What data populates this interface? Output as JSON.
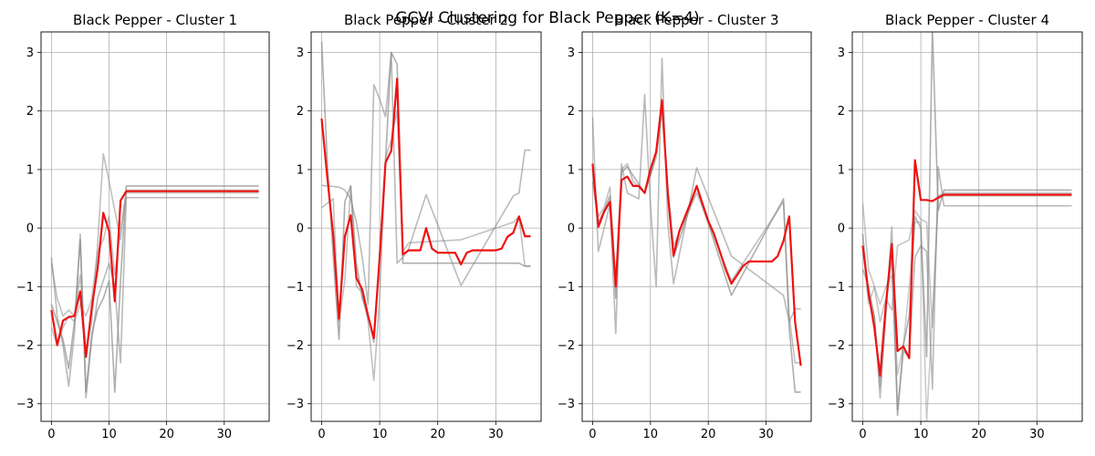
{
  "figure": {
    "suptitle": "GCVI Clustering for Black Pepper (K=4)"
  },
  "chart_data": [
    {
      "type": "line",
      "title": "Black Pepper - Cluster 1",
      "xlim": [
        -1.8,
        37.8
      ],
      "ylim": [
        -3.3,
        3.35
      ],
      "xticks": [
        0,
        10,
        20,
        30
      ],
      "yticks": [
        -3,
        -2,
        -1,
        0,
        1,
        2,
        3
      ],
      "grid": true,
      "series": [
        {
          "role": "member",
          "color": "#8c8c8c",
          "opacity": 0.7,
          "x": [
            0,
            1,
            2,
            3,
            4,
            5,
            6,
            7,
            8,
            9,
            10,
            11,
            12,
            13,
            36
          ],
          "y": [
            -1.3,
            -1.6,
            -1.9,
            -2.4,
            -1.6,
            -0.2,
            -2.8,
            -1.8,
            -1.4,
            -1.2,
            -0.9,
            -2.8,
            -0.9,
            0.72,
            0.72
          ]
        },
        {
          "role": "member",
          "color": "#8c8c8c",
          "opacity": 0.6,
          "x": [
            0,
            1,
            2,
            3,
            4,
            5,
            6,
            7,
            8,
            9,
            10,
            11,
            12,
            13,
            36
          ],
          "y": [
            -0.5,
            -1.5,
            -2.0,
            -2.7,
            -1.8,
            -0.1,
            -2.9,
            -1.9,
            -1.2,
            -0.9,
            -0.6,
            -1.0,
            -2.3,
            0.52,
            0.52
          ]
        },
        {
          "role": "member",
          "color": "#8c8c8c",
          "opacity": 0.55,
          "x": [
            0,
            1,
            2,
            3,
            4,
            5,
            6,
            7,
            8,
            9,
            10,
            11,
            12,
            13,
            36
          ],
          "y": [
            -0.6,
            -1.2,
            -1.5,
            -1.4,
            -1.5,
            -0.8,
            -2.1,
            -1.6,
            -0.3,
            1.27,
            0.8,
            0.3,
            -0.2,
            0.65,
            0.65
          ]
        },
        {
          "role": "member",
          "color": "#8c8c8c",
          "opacity": 0.5,
          "x": [
            0,
            1,
            2,
            3,
            4,
            5,
            6,
            7,
            8,
            9,
            10,
            11,
            12,
            13,
            36
          ],
          "y": [
            -1.7,
            -2.0,
            -1.7,
            -1.5,
            -1.6,
            -1.3,
            -1.5,
            -1.2,
            -0.4,
            -0.2,
            0.2,
            -0.8,
            0.0,
            0.6,
            0.6
          ]
        },
        {
          "role": "centroid",
          "color": "#ee1111",
          "opacity": 1,
          "x": [
            0,
            1,
            2,
            3,
            4,
            5,
            6,
            7,
            8,
            9,
            10,
            11,
            12,
            13,
            36
          ],
          "y": [
            -1.4,
            -2.0,
            -1.58,
            -1.52,
            -1.5,
            -1.08,
            -2.2,
            -1.35,
            -0.7,
            0.26,
            -0.05,
            -1.25,
            0.47,
            0.63,
            0.63
          ]
        }
      ]
    },
    {
      "type": "line",
      "title": "Black Pepper - Cluster 2",
      "xlim": [
        -1.8,
        37.8
      ],
      "ylim": [
        -3.3,
        3.35
      ],
      "xticks": [
        0,
        10,
        20,
        30
      ],
      "yticks": [
        -3,
        -2,
        -1,
        0,
        1,
        2,
        3
      ],
      "grid": true,
      "series": [
        {
          "role": "member",
          "color": "#8c8c8c",
          "opacity": 0.7,
          "x": [
            0,
            1,
            2,
            3,
            4,
            5,
            6,
            7,
            8,
            9,
            10,
            11,
            12,
            13,
            14,
            15,
            18,
            20,
            24,
            30,
            33,
            34,
            35,
            36
          ],
          "y": [
            3.18,
            1.1,
            -0.5,
            -1.9,
            0.45,
            0.72,
            -0.6,
            -1.2,
            -1.5,
            -1.95,
            -0.4,
            1.15,
            3.0,
            2.8,
            -0.6,
            -0.6,
            -0.6,
            -0.6,
            -0.6,
            -0.6,
            -0.6,
            -0.6,
            -0.65,
            -0.65
          ]
        },
        {
          "role": "member",
          "color": "#8c8c8c",
          "opacity": 0.6,
          "x": [
            0,
            1,
            2,
            3,
            4,
            5,
            6,
            7,
            8,
            9,
            10,
            11,
            12,
            13,
            14,
            15,
            18,
            24,
            33,
            34,
            35,
            36
          ],
          "y": [
            0.73,
            0.72,
            0.71,
            0.7,
            0.65,
            0.5,
            0.1,
            -0.5,
            -1.3,
            2.45,
            2.2,
            1.9,
            3.0,
            -0.6,
            -0.5,
            -0.35,
            0.57,
            -0.98,
            0.55,
            0.6,
            1.33,
            1.33
          ]
        },
        {
          "role": "member",
          "color": "#8c8c8c",
          "opacity": 0.55,
          "x": [
            0,
            2,
            3,
            4,
            5,
            6,
            7,
            8,
            9,
            10,
            11,
            12,
            13,
            14,
            15,
            24,
            33,
            34,
            35,
            36
          ],
          "y": [
            0.35,
            0.5,
            -1.6,
            -0.9,
            0.72,
            -1.0,
            -1.1,
            -1.6,
            -2.6,
            -1.2,
            1.2,
            1.5,
            2.0,
            -0.4,
            -0.25,
            -0.2,
            0.1,
            0.2,
            -0.65,
            -0.65
          ]
        },
        {
          "role": "centroid",
          "color": "#ee1111",
          "opacity": 1,
          "x": [
            0,
            1,
            2,
            3,
            4,
            5,
            6,
            7,
            8,
            9,
            10,
            11,
            12,
            13,
            14,
            15,
            16,
            17,
            18,
            19,
            20,
            21,
            22,
            23,
            24,
            25,
            26,
            27,
            28,
            29,
            30,
            31,
            32,
            33,
            34,
            35,
            36
          ],
          "y": [
            1.87,
            0.85,
            -0.12,
            -1.55,
            -0.15,
            0.22,
            -0.85,
            -1.05,
            -1.5,
            -1.88,
            -0.5,
            1.12,
            1.32,
            2.55,
            -0.45,
            -0.38,
            -0.38,
            -0.38,
            0.0,
            -0.35,
            -0.42,
            -0.42,
            -0.42,
            -0.42,
            -0.62,
            -0.42,
            -0.38,
            -0.38,
            -0.38,
            -0.38,
            -0.38,
            -0.35,
            -0.15,
            -0.08,
            0.2,
            -0.14,
            -0.14
          ]
        }
      ]
    },
    {
      "type": "line",
      "title": "Black Pepper - Cluster 3",
      "xlim": [
        -1.8,
        37.8
      ],
      "ylim": [
        -3.3,
        3.35
      ],
      "xticks": [
        0,
        10,
        20,
        30
      ],
      "yticks": [
        -3,
        -2,
        -1,
        0,
        1,
        2,
        3
      ],
      "grid": true,
      "series": [
        {
          "role": "member",
          "color": "#8c8c8c",
          "opacity": 0.7,
          "x": [
            0,
            1,
            2,
            3,
            4,
            5,
            6,
            7,
            8,
            9,
            10,
            11,
            12,
            13,
            14,
            18,
            24,
            33,
            34,
            35,
            36
          ],
          "y": [
            0.8,
            0.1,
            0.3,
            0.55,
            -1.2,
            0.95,
            1.05,
            0.9,
            0.75,
            0.6,
            0.9,
            1.3,
            2.2,
            0.6,
            -0.5,
            0.7,
            -1.15,
            0.5,
            -1.7,
            -2.8,
            -2.8
          ]
        },
        {
          "role": "member",
          "color": "#8c8c8c",
          "opacity": 0.6,
          "x": [
            0,
            1,
            2,
            3,
            4,
            5,
            6,
            7,
            8,
            9,
            10,
            11,
            12,
            13,
            14,
            18,
            24,
            33,
            34,
            35,
            36
          ],
          "y": [
            1.9,
            -0.4,
            0.0,
            0.4,
            -1.8,
            1.1,
            0.6,
            0.55,
            0.5,
            2.28,
            0.4,
            -1.0,
            2.9,
            0.1,
            -0.95,
            1.03,
            -0.48,
            -1.15,
            -1.6,
            -1.38,
            -1.38
          ]
        },
        {
          "role": "member",
          "color": "#8c8c8c",
          "opacity": 0.55,
          "x": [
            0,
            1,
            2,
            3,
            4,
            5,
            6,
            7,
            8,
            9,
            10,
            11,
            12,
            13,
            14,
            18,
            24,
            33,
            34,
            35,
            36
          ],
          "y": [
            1.0,
            0.2,
            0.35,
            0.7,
            -0.9,
            1.0,
            1.1,
            0.8,
            0.7,
            0.6,
            0.9,
            1.2,
            2.0,
            0.7,
            -0.3,
            0.6,
            -0.9,
            0.45,
            -1.5,
            -2.3,
            -2.3
          ]
        },
        {
          "role": "centroid",
          "color": "#ee1111",
          "opacity": 1,
          "x": [
            0,
            1,
            2,
            3,
            4,
            5,
            6,
            7,
            8,
            9,
            10,
            11,
            12,
            13,
            14,
            15,
            16,
            17,
            18,
            19,
            20,
            21,
            22,
            23,
            24,
            25,
            26,
            27,
            28,
            29,
            30,
            31,
            32,
            33,
            34,
            35,
            36
          ],
          "y": [
            1.1,
            0.02,
            0.28,
            0.45,
            -1.0,
            0.82,
            0.88,
            0.72,
            0.72,
            0.6,
            1.0,
            1.3,
            2.18,
            0.6,
            -0.47,
            -0.05,
            0.2,
            0.45,
            0.72,
            0.42,
            0.12,
            -0.1,
            -0.4,
            -0.7,
            -0.95,
            -0.8,
            -0.65,
            -0.57,
            -0.57,
            -0.57,
            -0.57,
            -0.57,
            -0.48,
            -0.22,
            0.2,
            -1.6,
            -2.35
          ]
        }
      ]
    },
    {
      "type": "line",
      "title": "Black Pepper - Cluster 4",
      "xlim": [
        -1.8,
        37.8
      ],
      "ylim": [
        -3.3,
        3.35
      ],
      "xticks": [
        0,
        10,
        20,
        30
      ],
      "yticks": [
        -3,
        -2,
        -1,
        0,
        1,
        2,
        3
      ],
      "grid": true,
      "series": [
        {
          "role": "member",
          "color": "#8c8c8c",
          "opacity": 0.7,
          "x": [
            0,
            1,
            2,
            3,
            4,
            5,
            6,
            7,
            8,
            9,
            10,
            11,
            12,
            13,
            14,
            36
          ],
          "y": [
            -0.1,
            -1.2,
            -1.5,
            -2.7,
            -1.3,
            -0.5,
            -3.2,
            -2.0,
            -1.5,
            0.2,
            0.0,
            -2.2,
            3.4,
            0.3,
            0.65,
            0.65
          ]
        },
        {
          "role": "member",
          "color": "#8c8c8c",
          "opacity": 0.6,
          "x": [
            0,
            1,
            2,
            3,
            4,
            5,
            6,
            7,
            8,
            9,
            10,
            11,
            12,
            13,
            14,
            36
          ],
          "y": [
            -0.7,
            -1.0,
            -1.5,
            -2.9,
            -1.5,
            0.02,
            -3.1,
            -2.1,
            -2.2,
            -0.5,
            -0.3,
            -0.4,
            -2.75,
            1.05,
            0.38,
            0.38
          ]
        },
        {
          "role": "member",
          "color": "#8c8c8c",
          "opacity": 0.5,
          "x": [
            0,
            1,
            2,
            3,
            4,
            5,
            6,
            7,
            8,
            9,
            10,
            11,
            12,
            13,
            14,
            36
          ],
          "y": [
            0.42,
            -0.7,
            -1.0,
            -1.6,
            -1.2,
            -1.4,
            -0.3,
            -0.25,
            -0.2,
            0.3,
            0.15,
            0.1,
            -1.7,
            0.55,
            0.6,
            0.6
          ]
        },
        {
          "role": "member",
          "color": "#8c8c8c",
          "opacity": 0.45,
          "x": [
            0,
            1,
            2,
            3,
            4,
            5,
            6,
            7,
            8,
            9,
            10,
            11,
            12,
            13,
            14,
            36
          ],
          "y": [
            -0.3,
            -1.3,
            -1.0,
            -1.3,
            -1.0,
            -0.8,
            -2.5,
            -2.0,
            -1.0,
            0.1,
            0.1,
            -3.3,
            -1.5,
            0.5,
            0.55,
            0.55
          ]
        },
        {
          "role": "centroid",
          "color": "#ee1111",
          "opacity": 1,
          "x": [
            0,
            1,
            2,
            3,
            4,
            5,
            6,
            7,
            8,
            9,
            10,
            11,
            12,
            13,
            14,
            36
          ],
          "y": [
            -0.3,
            -1.1,
            -1.7,
            -2.52,
            -1.3,
            -0.27,
            -2.1,
            -2.02,
            -2.22,
            1.16,
            0.48,
            0.48,
            0.46,
            0.52,
            0.57,
            0.57
          ]
        }
      ]
    }
  ]
}
